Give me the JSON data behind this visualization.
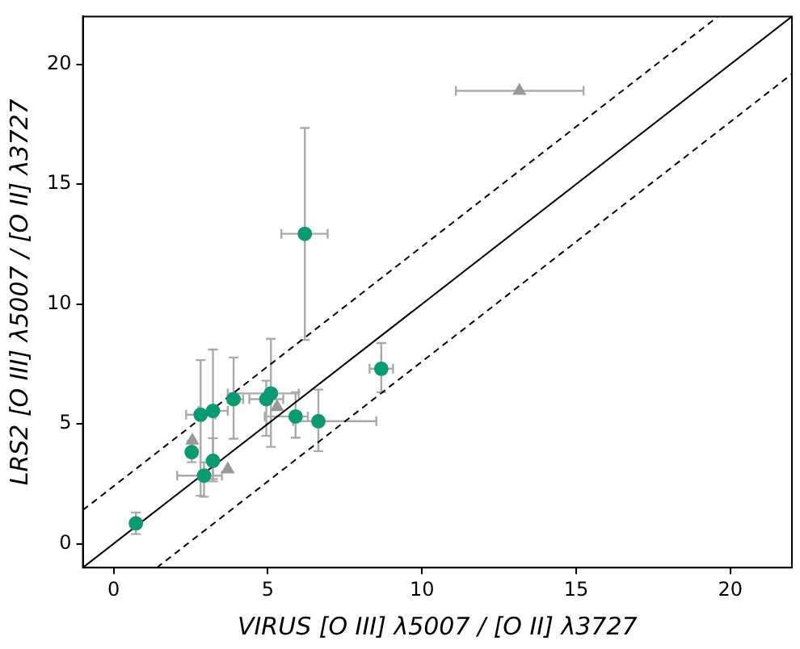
{
  "chart_data": {
    "type": "scatter",
    "xlabel": "VIRUS [O III] λ5007 / [O II] λ3727",
    "ylabel": "LRS2 [O III] λ5007 / [O II] λ3727",
    "xlim": [
      -1,
      22
    ],
    "ylim": [
      -1,
      22
    ],
    "xticks": [
      0,
      5,
      10,
      15,
      20
    ],
    "yticks": [
      0,
      5,
      10,
      15,
      20
    ],
    "grid": false,
    "legend": false,
    "series": [
      {
        "type": "line",
        "color": "#000000",
        "line_style": "solid",
        "marker": "none",
        "x": [
          -1,
          22
        ],
        "values": [
          -1,
          22
        ]
      },
      {
        "type": "line",
        "color": "#000000",
        "line_style": "dashed",
        "marker": "none",
        "x": [
          -1,
          19.6
        ],
        "values": [
          1.4,
          22
        ]
      },
      {
        "type": "line",
        "color": "#000000",
        "line_style": "dashed",
        "marker": "none",
        "x": [
          1.4,
          22
        ],
        "values": [
          -1,
          19.6
        ]
      },
      {
        "color": "#999999",
        "marker": "triangle",
        "x": [
          13.16,
          5.3,
          2.55,
          3.7
        ],
        "values": [
          18.9,
          5.7,
          4.3,
          3.1
        ],
        "errors": [
          null,
          null,
          null,
          null
        ],
        "xerrors": [
          [
            11.1,
            15.24
          ],
          null,
          null,
          null
        ]
      },
      {
        "color": "#0a9b72",
        "marker": "circle",
        "x": [
          0.72,
          2.53,
          2.82,
          3.22,
          3.22,
          2.93,
          3.89,
          4.95,
          5.1,
          5.9,
          6.64,
          6.2,
          8.68
        ],
        "values": [
          0.85,
          3.82,
          5.38,
          5.54,
          3.46,
          2.84,
          6.03,
          6.03,
          6.27,
          5.31,
          5.11,
          12.93,
          7.3
        ],
        "errors": [
          [
            0.4,
            1.3
          ],
          [
            3.4,
            4.3
          ],
          [
            2.0,
            7.66
          ],
          [
            2.7,
            8.1
          ],
          [
            2.6,
            4.4
          ],
          [
            1.96,
            3.4
          ],
          [
            4.38,
            7.77
          ],
          [
            4.5,
            6.8
          ],
          [
            4.04,
            8.55
          ],
          [
            4.42,
            6.32
          ],
          [
            3.86,
            6.43
          ],
          [
            8.5,
            17.35
          ],
          [
            6.32,
            8.37
          ]
        ],
        "xerrors": [
          null,
          null,
          [
            2.35,
            3.3
          ],
          [
            2.75,
            3.7
          ],
          null,
          [
            2.06,
            3.51
          ],
          [
            3.7,
            4.2
          ],
          [
            4.4,
            5.5
          ],
          [
            3.7,
            6.0
          ],
          [
            4.9,
            6.3
          ],
          [
            5.82,
            8.52
          ],
          [
            5.44,
            6.94
          ],
          [
            8.3,
            9.06
          ]
        ]
      }
    ]
  }
}
